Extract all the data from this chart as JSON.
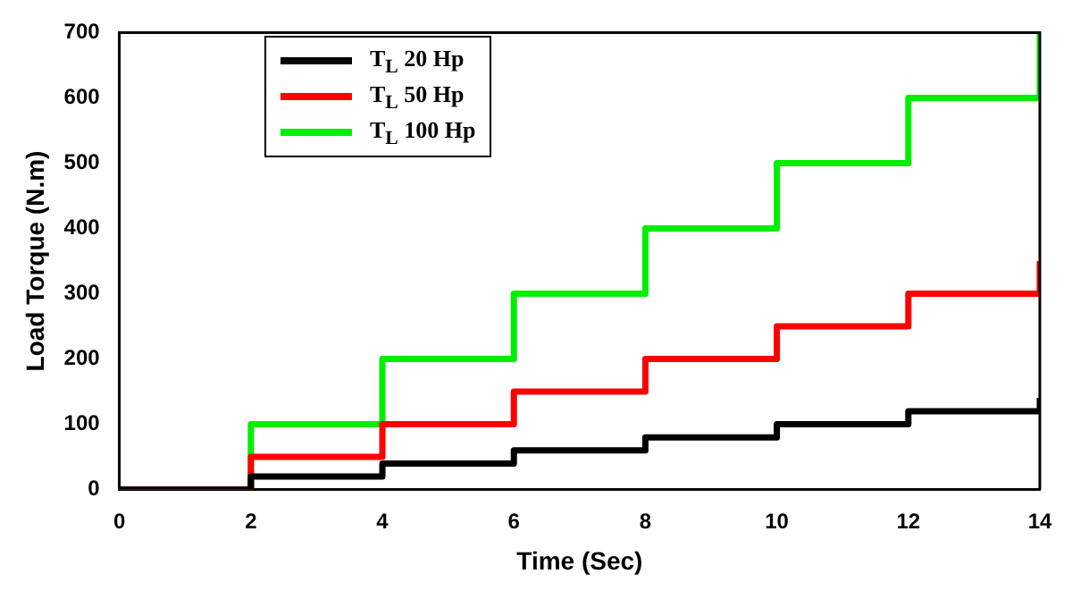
{
  "chart_data": {
    "type": "step",
    "xlabel": "Time (Sec)",
    "ylabel": "Load Torque (N.m)",
    "x": [
      0,
      2,
      4,
      6,
      8,
      10,
      12,
      14
    ],
    "series": [
      {
        "name": "T$_{L}$ 20 Hp",
        "color": "#000000",
        "values": [
          0,
          20,
          40,
          60,
          80,
          100,
          120,
          140
        ]
      },
      {
        "name": "T$_{L}$ 50 Hp",
        "color": "#ff0000",
        "values": [
          0,
          50,
          100,
          150,
          200,
          250,
          300,
          350
        ]
      },
      {
        "name": "T$_{L}$ 100 Hp",
        "color": "#00ee00",
        "values": [
          0,
          100,
          200,
          300,
          400,
          500,
          600,
          700
        ]
      }
    ],
    "xlim": [
      0,
      14
    ],
    "xticks": [
      0,
      2,
      4,
      6,
      8,
      10,
      12,
      14
    ],
    "ylim": [
      0,
      700
    ],
    "yticks": [
      0,
      100,
      200,
      300,
      400,
      500,
      600,
      700
    ],
    "grid": false,
    "legend": "top left",
    "marker": "none",
    "line_style": "solid"
  }
}
